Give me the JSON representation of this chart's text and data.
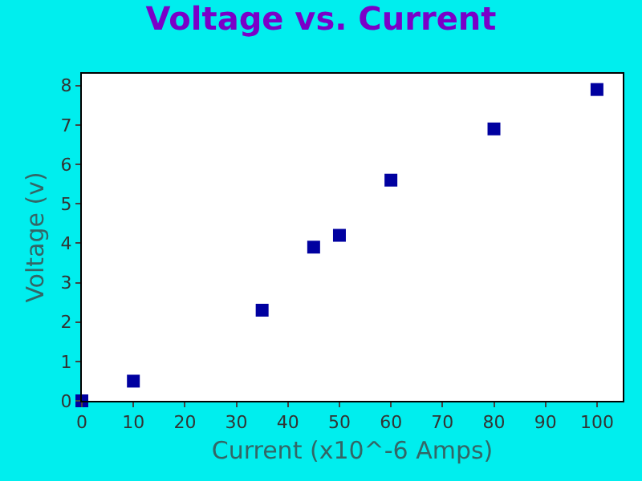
{
  "chart_data": {
    "type": "scatter",
    "title": "Voltage vs. Current",
    "xlabel": "Current (x10^-6 Amps)",
    "ylabel": "Voltage (v)",
    "x": [
      0,
      10,
      35,
      45,
      50,
      60,
      80,
      100
    ],
    "series": [
      {
        "color": "#0000a0",
        "values": [
          0,
          0.5,
          2.3,
          3.9,
          4.2,
          5.6,
          6.9,
          7.9
        ]
      }
    ],
    "xlim": [
      0,
      105
    ],
    "xticks": [
      0,
      10,
      20,
      30,
      40,
      50,
      60,
      70,
      80,
      90,
      100
    ],
    "ylim": [
      0,
      8.3
    ],
    "yticks": [
      0,
      1,
      2,
      3,
      4,
      5,
      6,
      7,
      8
    ],
    "marker": "square",
    "grid": false
  }
}
